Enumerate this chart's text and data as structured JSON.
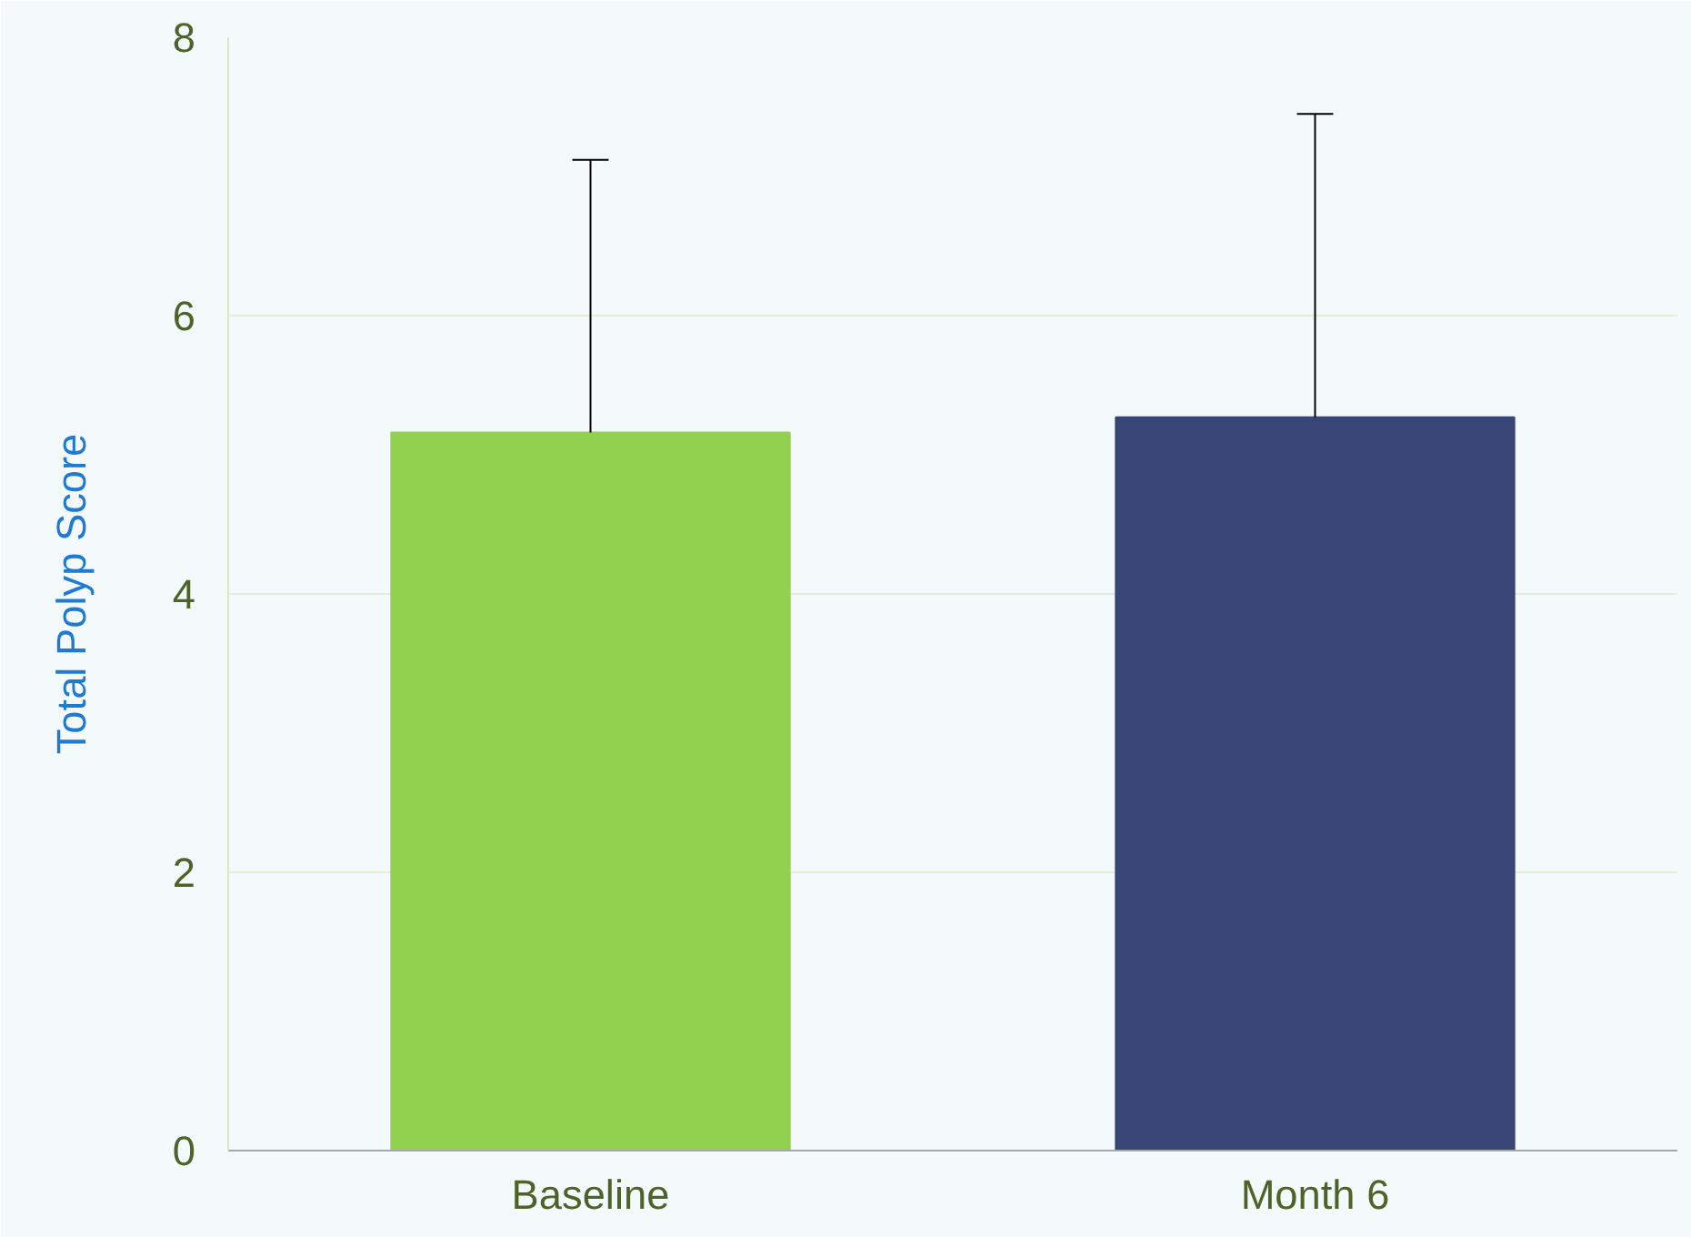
{
  "chart_data": {
    "type": "bar",
    "ylabel": "Total Polyp Score",
    "categories": [
      "Baseline",
      "Month 6"
    ],
    "values": [
      5.16,
      5.27
    ],
    "colors": [
      "#92d050",
      "#374577"
    ],
    "errors": [
      [
        5.16,
        7.12
      ],
      [
        5.27,
        7.45
      ]
    ],
    "ylim": [
      0,
      8
    ],
    "yticks": [
      0,
      2,
      4,
      6,
      8
    ],
    "grid": "y"
  }
}
